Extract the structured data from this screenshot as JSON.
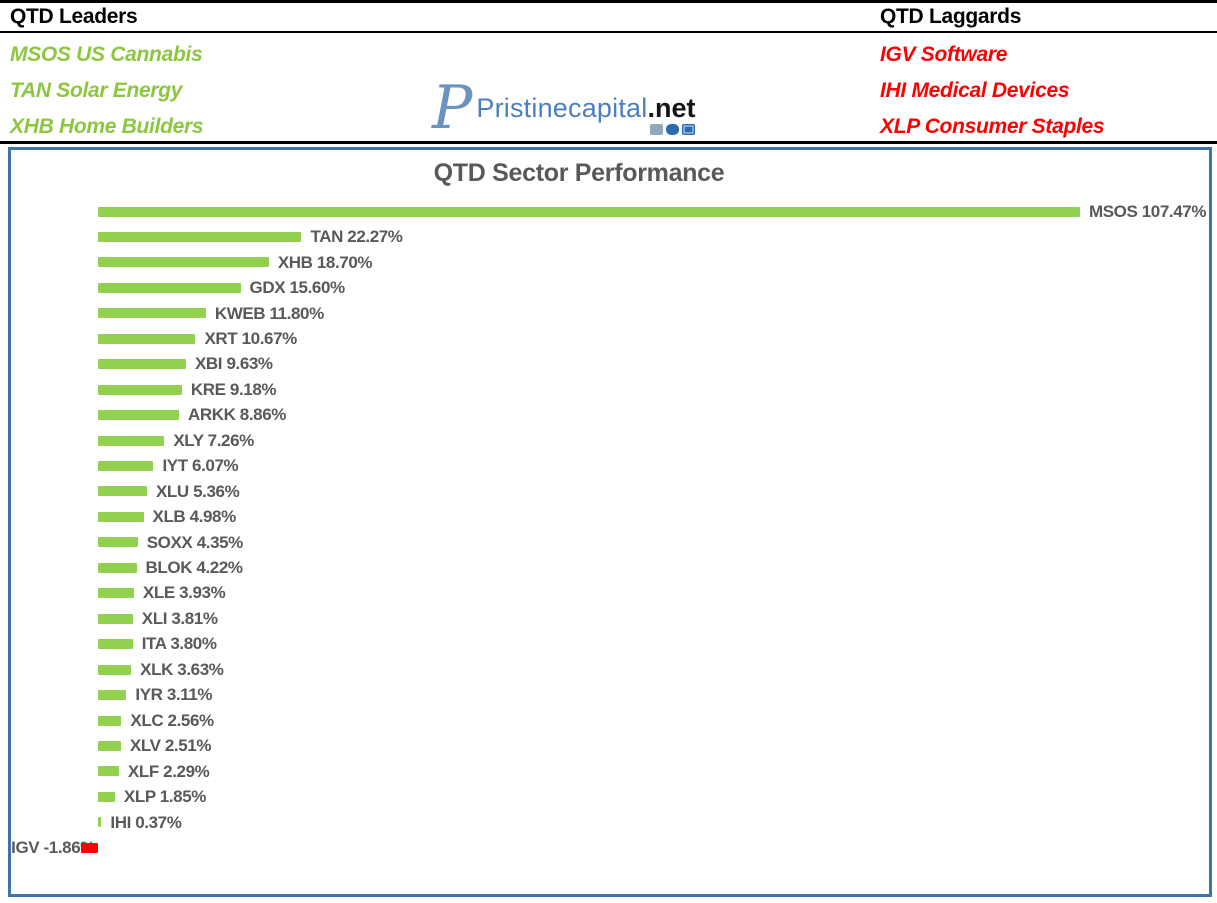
{
  "header": {
    "leaders": {
      "title": "QTD Leaders",
      "items": [
        "MSOS US Cannabis",
        "TAN Solar Energy",
        "XHB Home Builders"
      ]
    },
    "laggards": {
      "title": "QTD Laggards",
      "items": [
        "IGV Software",
        "IHI Medical Devices",
        "XLP Consumer Staples"
      ]
    },
    "logo": {
      "monogram": "P",
      "name": "Pristinecapital",
      "tld": ".net"
    }
  },
  "colors": {
    "positive_bar": "#92D050",
    "negative_bar": "#FF0000",
    "leader_text": "#8DC63F",
    "laggard_text": "#FF0000",
    "label_text": "#595959",
    "chart_border": "#3E74A8",
    "logo_blue": "#4C7FBE"
  },
  "chart_data": {
    "type": "bar",
    "orientation": "horizontal",
    "title": "QTD Sector Performance",
    "value_suffix": "%",
    "grid": false,
    "legend": false,
    "axis_labels_visible": false,
    "xlim": [
      -10,
      120
    ],
    "categories": [
      "MSOS",
      "TAN",
      "XHB",
      "GDX",
      "KWEB",
      "XRT",
      "XBI",
      "KRE",
      "ARKK",
      "XLY",
      "IYT",
      "XLU",
      "XLB",
      "SOXX",
      "BLOK",
      "XLE",
      "XLI",
      "ITA",
      "XLK",
      "IYR",
      "XLC",
      "XLV",
      "XLF",
      "XLP",
      "IHI",
      "IGV"
    ],
    "values": [
      107.47,
      22.27,
      18.7,
      15.6,
      11.8,
      10.67,
      9.63,
      9.18,
      8.86,
      7.26,
      6.07,
      5.36,
      4.98,
      4.35,
      4.22,
      3.93,
      3.81,
      3.8,
      3.63,
      3.11,
      2.56,
      2.51,
      2.29,
      1.85,
      0.37,
      -1.86
    ]
  }
}
